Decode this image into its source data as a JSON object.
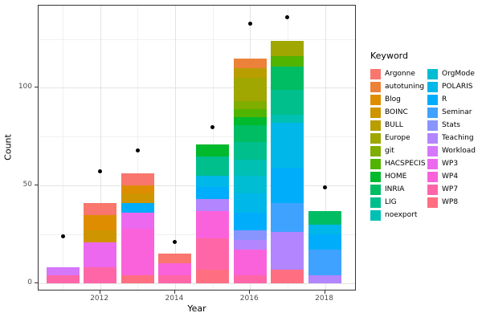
{
  "chart_data": {
    "type": "bar",
    "stacked": true,
    "xlabel": "Year",
    "ylabel": "Count",
    "legend_title": "Keyword",
    "grid": true,
    "ylim": [
      0,
      142
    ],
    "y_major_ticks": [
      0,
      50,
      100
    ],
    "y_minor_ticks": [
      25,
      75,
      125
    ],
    "x_major_ticks": [
      2012,
      2014,
      2016,
      2018
    ],
    "x_minor_ticks": [
      2011,
      2013,
      2015,
      2017
    ],
    "keywords": [
      {
        "label": "Argonne",
        "color": "#F8766D"
      },
      {
        "label": "autotuning",
        "color": "#EC8239"
      },
      {
        "label": "Blog",
        "color": "#DF8D00"
      },
      {
        "label": "BOINC",
        "color": "#CE9500"
      },
      {
        "label": "BULL",
        "color": "#B99E00"
      },
      {
        "label": "Europe",
        "color": "#9FA700"
      },
      {
        "label": "git",
        "color": "#7FAD00"
      },
      {
        "label": "HACSPECIS",
        "color": "#50B400"
      },
      {
        "label": "HOME",
        "color": "#00B92C"
      },
      {
        "label": "INRIA",
        "color": "#00BD64"
      },
      {
        "label": "LIG",
        "color": "#00BF8D"
      },
      {
        "label": "noexport",
        "color": "#00C0B3"
      },
      {
        "label": "OrgMode",
        "color": "#00BDD4"
      },
      {
        "label": "POLARIS",
        "color": "#00B7E9"
      },
      {
        "label": "R",
        "color": "#00ADFA"
      },
      {
        "label": "Seminar",
        "color": "#3FA2FF"
      },
      {
        "label": "Stats",
        "color": "#8895FF"
      },
      {
        "label": "Teaching",
        "color": "#B385FF"
      },
      {
        "label": "Workload",
        "color": "#D577FB"
      },
      {
        "label": "WP3",
        "color": "#EC69EF"
      },
      {
        "label": "WP4",
        "color": "#FA62DB"
      },
      {
        "label": "WP7",
        "color": "#FF66A8"
      },
      {
        "label": "WP8",
        "color": "#FF6F81"
      }
    ],
    "bars": [
      {
        "year": 2011,
        "point": 24,
        "segments": [
          {
            "keyword": "WP7",
            "value": 4
          },
          {
            "keyword": "Workload",
            "value": 4
          }
        ]
      },
      {
        "year": 2012,
        "point": 57,
        "segments": [
          {
            "keyword": "WP7",
            "value": 8
          },
          {
            "keyword": "WP3",
            "value": 13
          },
          {
            "keyword": "BOINC",
            "value": 6
          },
          {
            "keyword": "Blog",
            "value": 8
          },
          {
            "keyword": "Argonne",
            "value": 6
          }
        ]
      },
      {
        "year": 2013,
        "point": 68,
        "segments": [
          {
            "keyword": "WP8",
            "value": 4
          },
          {
            "keyword": "WP4",
            "value": 24
          },
          {
            "keyword": "WP3",
            "value": 8
          },
          {
            "keyword": "R",
            "value": 5
          },
          {
            "keyword": "BOINC",
            "value": 5
          },
          {
            "keyword": "Blog",
            "value": 4
          },
          {
            "keyword": "Argonne",
            "value": 6
          }
        ]
      },
      {
        "year": 2014,
        "point": 21,
        "segments": [
          {
            "keyword": "WP7",
            "value": 4
          },
          {
            "keyword": "WP4",
            "value": 6
          },
          {
            "keyword": "Argonne",
            "value": 5
          }
        ]
      },
      {
        "year": 2015,
        "point": 80,
        "segments": [
          {
            "keyword": "WP8",
            "value": 7
          },
          {
            "keyword": "WP7",
            "value": 16
          },
          {
            "keyword": "WP4",
            "value": 14
          },
          {
            "keyword": "Teaching",
            "value": 6
          },
          {
            "keyword": "R",
            "value": 6
          },
          {
            "keyword": "POLARIS",
            "value": 6
          },
          {
            "keyword": "LIG",
            "value": 10
          },
          {
            "keyword": "HOME",
            "value": 6
          }
        ]
      },
      {
        "year": 2016,
        "point": 133,
        "segments": [
          {
            "keyword": "WP7",
            "value": 4
          },
          {
            "keyword": "WP4",
            "value": 13
          },
          {
            "keyword": "Teaching",
            "value": 5
          },
          {
            "keyword": "Stats",
            "value": 5
          },
          {
            "keyword": "R",
            "value": 9
          },
          {
            "keyword": "POLARIS",
            "value": 10
          },
          {
            "keyword": "OrgMode",
            "value": 9
          },
          {
            "keyword": "noexport",
            "value": 8
          },
          {
            "keyword": "LIG",
            "value": 9
          },
          {
            "keyword": "INRIA",
            "value": 9
          },
          {
            "keyword": "HOME",
            "value": 4
          },
          {
            "keyword": "HACSPECIS",
            "value": 4
          },
          {
            "keyword": "git",
            "value": 4
          },
          {
            "keyword": "Europe",
            "value": 12
          },
          {
            "keyword": "BULL",
            "value": 5
          },
          {
            "keyword": "autotuning",
            "value": 5
          }
        ]
      },
      {
        "year": 2017,
        "point": 136,
        "segments": [
          {
            "keyword": "WP8",
            "value": 7
          },
          {
            "keyword": "Teaching",
            "value": 19
          },
          {
            "keyword": "Seminar",
            "value": 15
          },
          {
            "keyword": "R",
            "value": 18
          },
          {
            "keyword": "POLARIS",
            "value": 23
          },
          {
            "keyword": "noexport",
            "value": 4
          },
          {
            "keyword": "LIG",
            "value": 13
          },
          {
            "keyword": "INRIA",
            "value": 12
          },
          {
            "keyword": "HACSPECIS",
            "value": 5
          },
          {
            "keyword": "Europe",
            "value": 8
          }
        ]
      },
      {
        "year": 2018,
        "point": 49,
        "segments": [
          {
            "keyword": "Teaching",
            "value": 4
          },
          {
            "keyword": "Seminar",
            "value": 13
          },
          {
            "keyword": "R",
            "value": 8
          },
          {
            "keyword": "POLARIS",
            "value": 5
          },
          {
            "keyword": "INRIA",
            "value": 7
          }
        ]
      }
    ]
  }
}
